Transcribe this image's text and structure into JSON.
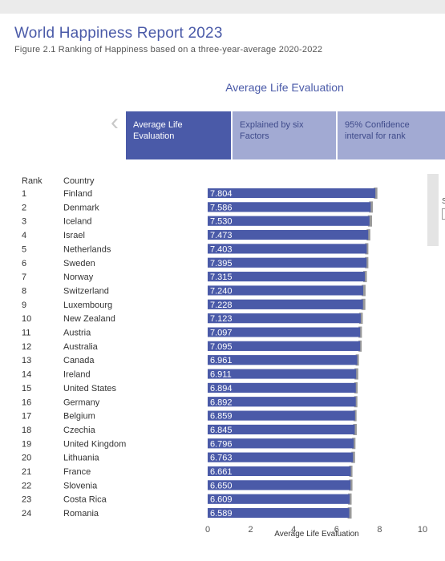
{
  "header": {
    "title": "World Happiness Report 2023",
    "subtitle": "Figure 2.1 Ranking of Happiness based on a three-year-average 2020-2022",
    "chart_heading": "Average Life Evaluation"
  },
  "tabs": [
    {
      "label": "Average Life Evaluation",
      "active": true
    },
    {
      "label": "Explained by six Factors",
      "active": false
    },
    {
      "label": "95% Confidence interval for rank",
      "active": false
    }
  ],
  "table_headers": {
    "rank": "Rank",
    "country": "Country"
  },
  "right_edge_text": "S",
  "colors": {
    "bar": "#4a5aa8",
    "tab_active": "#4a5aa8",
    "tab_inactive": "#a2aad3",
    "title": "#4a5aa8"
  },
  "icons": {
    "prev": "chevron-left-icon"
  },
  "chart_data": {
    "type": "bar",
    "orientation": "horizontal",
    "xlabel": "Average Life Evaluation",
    "xlim": [
      0,
      10
    ],
    "xticks": [
      0,
      2,
      4,
      6,
      8,
      10
    ],
    "rows": [
      {
        "rank": "1",
        "country": "Finland",
        "value": 7.804,
        "ci_high": 7.88
      },
      {
        "rank": "2",
        "country": "Denmark",
        "value": 7.586,
        "ci_high": 7.67
      },
      {
        "rank": "3",
        "country": "Iceland",
        "value": 7.53,
        "ci_high": 7.63
      },
      {
        "rank": "4",
        "country": "Israel",
        "value": 7.473,
        "ci_high": 7.55
      },
      {
        "rank": "5",
        "country": "Netherlands",
        "value": 7.403,
        "ci_high": 7.46
      },
      {
        "rank": "6",
        "country": "Sweden",
        "value": 7.395,
        "ci_high": 7.46
      },
      {
        "rank": "7",
        "country": "Norway",
        "value": 7.315,
        "ci_high": 7.39
      },
      {
        "rank": "8",
        "country": "Switzerland",
        "value": 7.24,
        "ci_high": 7.33
      },
      {
        "rank": "9",
        "country": "Luxembourg",
        "value": 7.228,
        "ci_high": 7.32
      },
      {
        "rank": "10",
        "country": "New Zealand",
        "value": 7.123,
        "ci_high": 7.2
      },
      {
        "rank": "11",
        "country": "Austria",
        "value": 7.097,
        "ci_high": 7.16
      },
      {
        "rank": "12",
        "country": "Australia",
        "value": 7.095,
        "ci_high": 7.15
      },
      {
        "rank": "13",
        "country": "Canada",
        "value": 6.961,
        "ci_high": 7.02
      },
      {
        "rank": "14",
        "country": "Ireland",
        "value": 6.911,
        "ci_high": 6.99
      },
      {
        "rank": "15",
        "country": "United States",
        "value": 6.894,
        "ci_high": 6.96
      },
      {
        "rank": "16",
        "country": "Germany",
        "value": 6.892,
        "ci_high": 6.95
      },
      {
        "rank": "17",
        "country": "Belgium",
        "value": 6.859,
        "ci_high": 6.91
      },
      {
        "rank": "18",
        "country": "Czechia",
        "value": 6.845,
        "ci_high": 6.92
      },
      {
        "rank": "19",
        "country": "United Kingdom",
        "value": 6.796,
        "ci_high": 6.86
      },
      {
        "rank": "20",
        "country": "Lithuania",
        "value": 6.763,
        "ci_high": 6.84
      },
      {
        "rank": "21",
        "country": "France",
        "value": 6.661,
        "ci_high": 6.72
      },
      {
        "rank": "22",
        "country": "Slovenia",
        "value": 6.65,
        "ci_high": 6.72
      },
      {
        "rank": "23",
        "country": "Costa Rica",
        "value": 6.609,
        "ci_high": 6.68
      },
      {
        "rank": "24",
        "country": "Romania",
        "value": 6.589,
        "ci_high": 6.68
      }
    ]
  }
}
